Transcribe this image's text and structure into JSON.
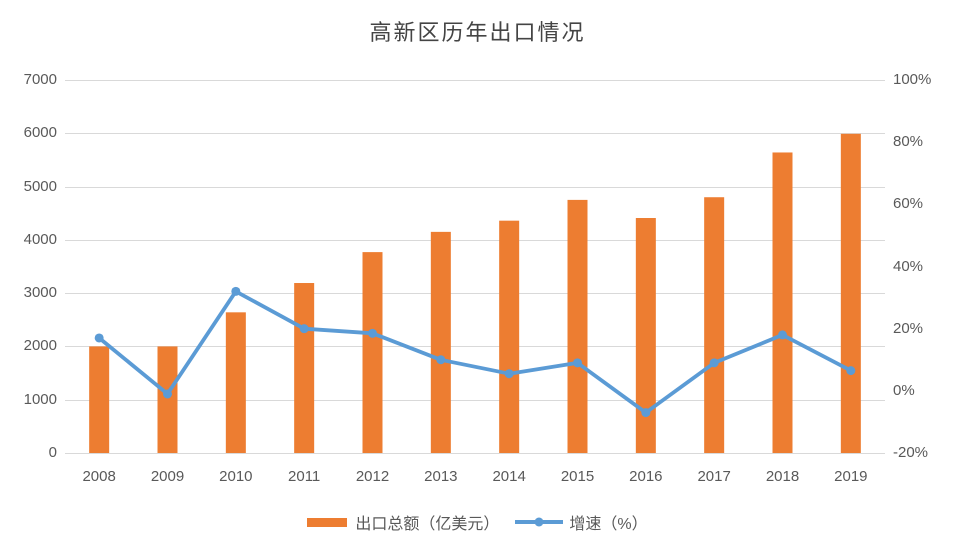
{
  "title": "高新区历年出口情况",
  "chart_data": {
    "type": "combo (bar + line)",
    "categories": [
      "2008",
      "2009",
      "2010",
      "2011",
      "2012",
      "2013",
      "2014",
      "2015",
      "2016",
      "2017",
      "2018",
      "2019"
    ],
    "series": [
      {
        "name": "出口总额（亿美元）",
        "type": "bar",
        "axis": "left",
        "color": "#ED7D31",
        "values": [
          2000,
          2000,
          2640,
          3190,
          3770,
          4150,
          4360,
          4750,
          4410,
          4800,
          5640,
          5990
        ]
      },
      {
        "name": "增速（%）",
        "type": "line",
        "axis": "right",
        "color": "#5B9BD5",
        "values": [
          17,
          -1,
          32,
          20,
          18.5,
          10,
          5.5,
          9,
          -7,
          9,
          18,
          6.5
        ]
      }
    ],
    "left_axis": {
      "min": 0,
      "max": 7000,
      "step": 1000,
      "labels": [
        "7000",
        "6000",
        "5000",
        "4000",
        "3000",
        "2000",
        "1000",
        "0"
      ]
    },
    "right_axis": {
      "min": -20,
      "max": 100,
      "step": 20,
      "labels": [
        "100%",
        "80%",
        "60%",
        "40%",
        "20%",
        "0%",
        "-20%"
      ]
    },
    "legend_position": "bottom",
    "grid": true,
    "colors": {
      "gridline": "#D9D9D9",
      "axis_text": "#595959",
      "title_text": "#444444",
      "background": "#FFFFFF"
    }
  }
}
